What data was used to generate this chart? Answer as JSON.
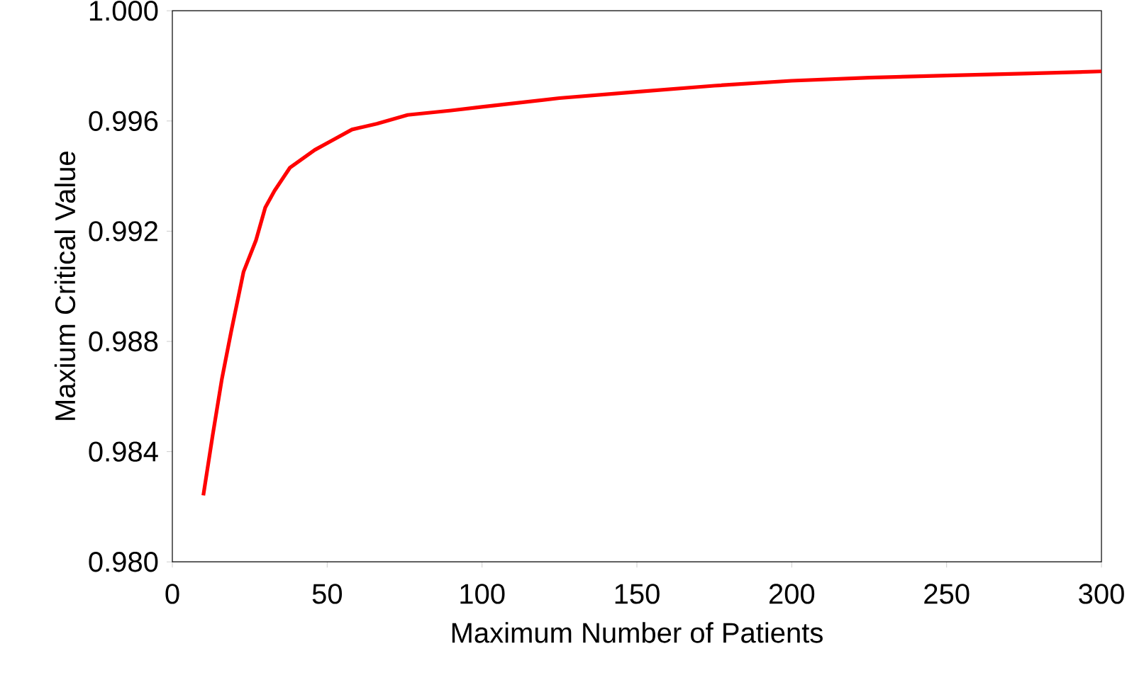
{
  "chart_data": {
    "type": "line",
    "xlabel": "Maximum Number of Patients",
    "ylabel": "Maxium Critical Value",
    "x": [
      10,
      13,
      16,
      19,
      23,
      27,
      30,
      33,
      38,
      46,
      52,
      58,
      66,
      76,
      90,
      100,
      125,
      150,
      175,
      200,
      225,
      250,
      275,
      300
    ],
    "series": [
      {
        "color": "#ff0000",
        "values": [
          0.98241,
          0.98458,
          0.98664,
          0.98836,
          0.99053,
          0.99167,
          0.99286,
          0.99347,
          0.99431,
          0.99495,
          0.99532,
          0.99569,
          0.9959,
          0.99622,
          0.99638,
          0.99651,
          0.99683,
          0.99706,
          0.99728,
          0.99746,
          0.99757,
          0.99765,
          0.99772,
          0.9978
        ]
      }
    ],
    "xlim": [
      0,
      300
    ],
    "xticks": [
      0,
      50,
      100,
      150,
      200,
      250,
      300
    ],
    "ylim": [
      0.98,
      1.0
    ],
    "yticks": [
      {
        "value": 0.98,
        "label": "0.980"
      },
      {
        "value": 0.984,
        "label": "0.984"
      },
      {
        "value": 0.988,
        "label": "0.988"
      },
      {
        "value": 0.992,
        "label": "0.992"
      },
      {
        "value": 0.996,
        "label": "0.996"
      },
      {
        "value": 1.0,
        "label": "1.000"
      }
    ],
    "grid": false,
    "legend": false
  }
}
